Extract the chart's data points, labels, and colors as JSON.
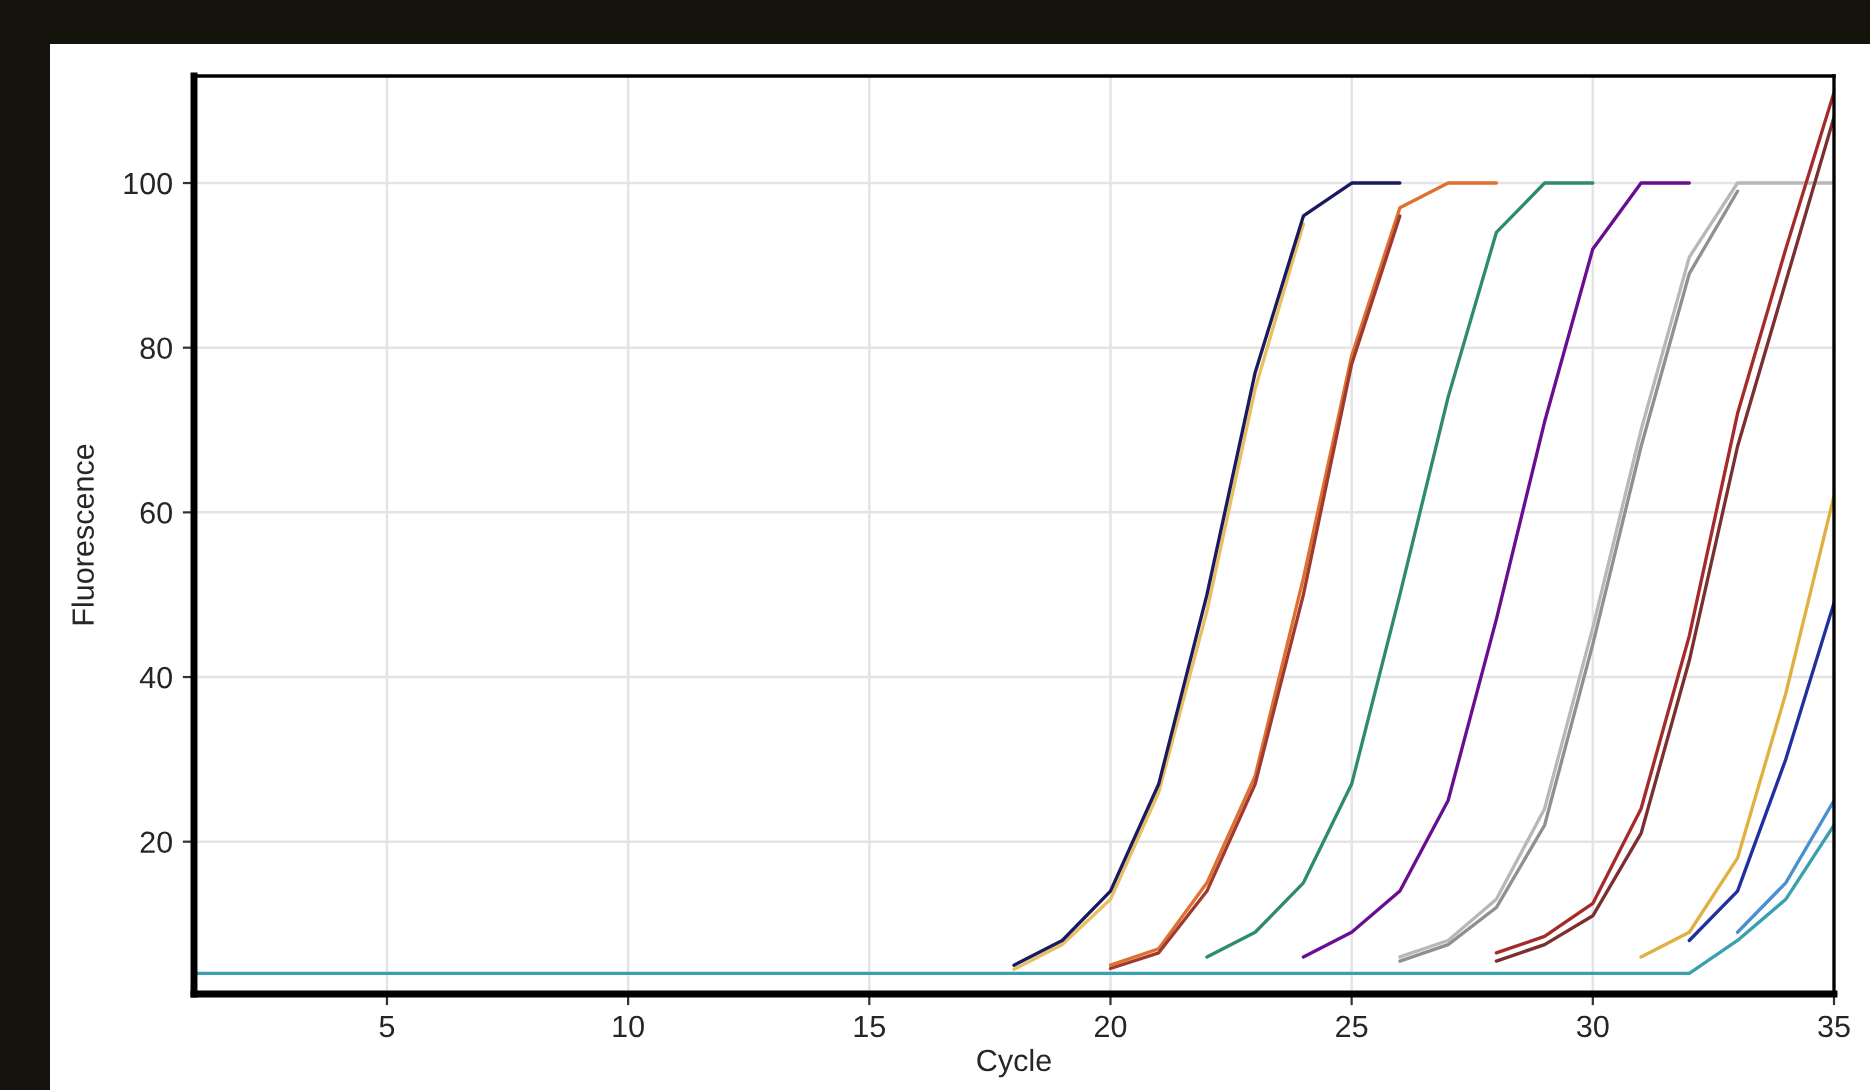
{
  "chart_data": {
    "type": "line",
    "xlabel": "Cycle",
    "ylabel": "Fluorescence",
    "xlim": [
      1,
      35
    ],
    "ylim": [
      1.5,
      113
    ],
    "xticks": [
      5,
      10,
      15,
      20,
      25,
      30,
      35
    ],
    "yticks": [
      20,
      40,
      60,
      80,
      100
    ],
    "grid": true,
    "line_style": "solid",
    "series": [
      {
        "color": "#e8c060",
        "x": [
          18,
          19,
          20,
          21,
          22,
          23,
          24
        ],
        "values": [
          4.5,
          7.5,
          13,
          26,
          48,
          75,
          95
        ]
      },
      {
        "color": "#1a1a5e",
        "x": [
          18,
          19,
          20,
          21,
          22,
          23,
          24,
          25,
          26
        ],
        "values": [
          5,
          8,
          14,
          27,
          50,
          77,
          96,
          100,
          100
        ]
      },
      {
        "color": "#e07030",
        "x": [
          20,
          21,
          22,
          23,
          24,
          25,
          26,
          27,
          28
        ],
        "values": [
          5,
          7,
          15,
          28,
          52,
          79,
          97,
          100,
          100
        ]
      },
      {
        "color": "#a03a30",
        "x": [
          20,
          21,
          22,
          23,
          24,
          25,
          26
        ],
        "values": [
          4.6,
          6.5,
          14,
          27,
          50,
          78,
          96
        ]
      },
      {
        "color": "#2e8b6e",
        "x": [
          22,
          23,
          24,
          25,
          26,
          27,
          28,
          29,
          30
        ],
        "values": [
          6,
          9,
          15,
          27,
          50,
          74,
          94,
          100,
          100
        ]
      },
      {
        "color": "#6a0d91",
        "x": [
          24,
          25,
          26,
          27,
          28,
          29,
          30,
          31,
          32
        ],
        "values": [
          6,
          9,
          14,
          25,
          47,
          71,
          92,
          100,
          100
        ]
      },
      {
        "color": "#b8b8b8",
        "x": [
          26,
          27,
          28,
          29,
          30,
          31,
          32,
          33,
          34,
          35
        ],
        "values": [
          6,
          8,
          13,
          24,
          46,
          70,
          91,
          100,
          100,
          100
        ]
      },
      {
        "color": "#909090",
        "x": [
          26,
          27,
          28,
          29,
          30,
          31,
          32,
          33
        ],
        "values": [
          5.5,
          7.5,
          12,
          22,
          44,
          68,
          89,
          99
        ]
      },
      {
        "color": "#7a3030",
        "x": [
          28,
          29,
          30,
          31,
          32,
          33,
          34,
          35
        ],
        "values": [
          5.5,
          7.5,
          11,
          21,
          42,
          68,
          88,
          108
        ]
      },
      {
        "color": "#a52a2a",
        "x": [
          28,
          29,
          30,
          31,
          32,
          33,
          34,
          35
        ],
        "values": [
          6.5,
          8.5,
          12.5,
          24,
          45,
          72,
          92,
          111
        ]
      },
      {
        "color": "#e0b040",
        "x": [
          31,
          32,
          33,
          34,
          35
        ],
        "values": [
          6,
          9,
          18,
          38,
          62
        ]
      },
      {
        "color": "#2030a0",
        "x": [
          32,
          33,
          34,
          35
        ],
        "values": [
          8,
          14,
          30,
          49
        ]
      },
      {
        "color": "#4a90d0",
        "x": [
          33,
          34,
          35
        ],
        "values": [
          9,
          15,
          25
        ]
      },
      {
        "color": "#3aa0b0",
        "x": [
          1,
          2,
          3,
          4,
          5,
          6,
          7,
          8,
          9,
          10,
          11,
          12,
          13,
          14,
          15,
          16,
          17,
          18,
          19,
          20,
          21,
          22,
          23,
          24,
          25,
          26,
          27,
          28,
          29,
          30,
          31,
          32,
          33,
          34,
          35
        ],
        "values": [
          4,
          4,
          4,
          4,
          4,
          4,
          4,
          4,
          4,
          4,
          4,
          4,
          4,
          4,
          4,
          4,
          4,
          4,
          4,
          4,
          4,
          4,
          4,
          4,
          4,
          4,
          4,
          4,
          4,
          4,
          4,
          4,
          8,
          13,
          22
        ]
      }
    ]
  }
}
